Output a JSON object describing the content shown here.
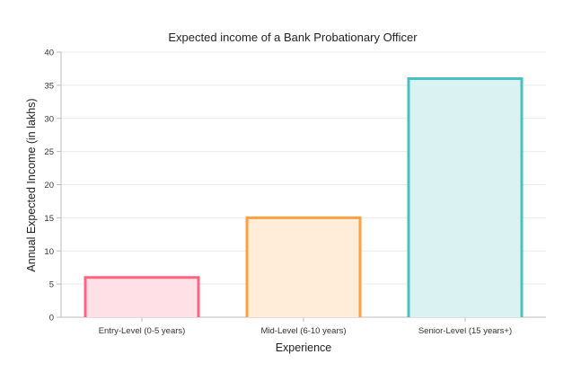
{
  "chart_data": {
    "type": "bar",
    "title": "Expected income of a Bank Probationary Officer",
    "xlabel": "Experience",
    "ylabel": "Annual Expected Income (in lakhs)",
    "categories": [
      "Entry-Level (0-5 years)",
      "Mid-Level (6-10 years)",
      "Senior-Level (15 years+)"
    ],
    "values": [
      6,
      15,
      36
    ],
    "ylim": [
      0,
      40
    ],
    "yticks": [
      0,
      5,
      10,
      15,
      20,
      25,
      30,
      35,
      40
    ],
    "grid": true,
    "colors": {
      "stroke": [
        "#ff6384",
        "#ff9f40",
        "#4bc0c0"
      ],
      "fill": [
        "#ffe0e6",
        "#ffecd9",
        "#dbf2f2"
      ]
    }
  }
}
